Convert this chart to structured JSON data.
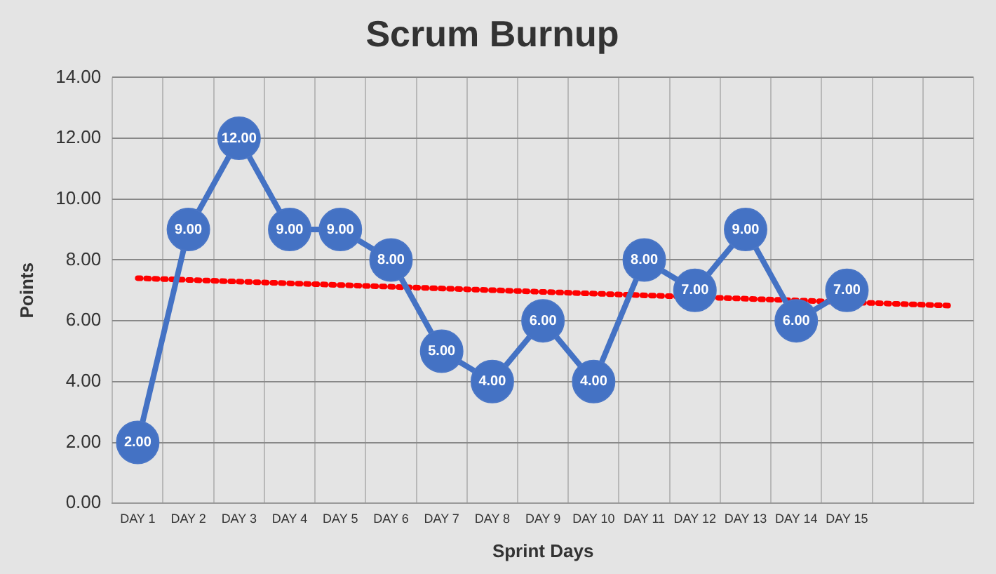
{
  "chart_data": {
    "type": "line",
    "title": "Scrum Burnup",
    "xlabel": "Sprint Days",
    "ylabel": "Points",
    "categories": [
      "DAY 1",
      "DAY 2",
      "DAY 3",
      "DAY 4",
      "DAY 5",
      "DAY 6",
      "DAY 7",
      "DAY 8",
      "DAY 9",
      "DAY 10",
      "DAY 11",
      "DAY 12",
      "DAY 13",
      "DAY 14",
      "DAY 15",
      null,
      null
    ],
    "series": [
      {
        "color": "#4472c4",
        "values": [
          2,
          9,
          12,
          9,
          9,
          8,
          5,
          4,
          6,
          4,
          8,
          7,
          9,
          6,
          7,
          null,
          null
        ],
        "value_labels": [
          "2.00",
          "9.00",
          "12.00",
          "9.00",
          "9.00",
          "8.00",
          "5.00",
          "4.00",
          "6.00",
          "4.00",
          "8.00",
          "7.00",
          "9.00",
          "6.00",
          "7.00",
          null,
          null
        ],
        "marker": "circle",
        "line_style": "solid"
      },
      {
        "type": "line",
        "color": "#ff0000",
        "values": [
          7.4,
          null,
          null,
          null,
          null,
          null,
          null,
          null,
          null,
          null,
          null,
          null,
          null,
          null,
          null,
          null,
          6.5
        ],
        "marker": "none",
        "line_style": "dotted"
      }
    ],
    "ylim": [
      0,
      14
    ],
    "yticks": [
      {
        "value": 0,
        "label": "0.00"
      },
      {
        "value": 2,
        "label": "2.00"
      },
      {
        "value": 4,
        "label": "4.00"
      },
      {
        "value": 6,
        "label": "6.00"
      },
      {
        "value": 8,
        "label": "8.00"
      },
      {
        "value": 10,
        "label": "10.00"
      },
      {
        "value": 12,
        "label": "12.00"
      },
      {
        "value": 14,
        "label": "14.00"
      }
    ],
    "grid": true,
    "legend": false
  }
}
